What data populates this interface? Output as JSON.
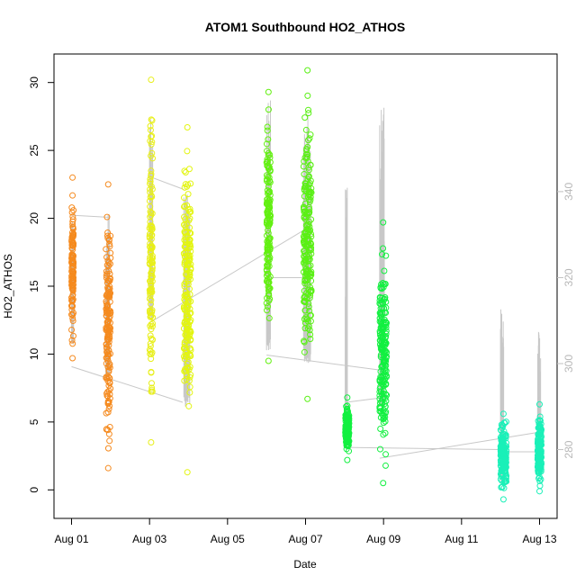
{
  "chart_data": {
    "type": "scatter",
    "title": "ATOM1 Southbound HO2_ATHOS",
    "xlabel": "Date",
    "ylabel": "HO2_ATHOS",
    "x_unit": "days since Aug 01",
    "xlim": [
      -0.45,
      12.45
    ],
    "ylim": [
      -2.1,
      32.1
    ],
    "y2lim": [
      264,
      372
    ],
    "x_ticks": [
      0,
      2,
      4,
      6,
      8,
      10,
      12
    ],
    "x_tick_labels": [
      "Aug 01",
      "Aug 03",
      "Aug 05",
      "Aug 07",
      "Aug 09",
      "Aug 11",
      "Aug 13"
    ],
    "y_ticks": [
      0,
      5,
      10,
      15,
      20,
      25,
      30
    ],
    "y2_ticks": [
      280,
      300,
      320,
      340
    ],
    "grid": false,
    "series": [
      {
        "name": "HO2_ATHOS",
        "marker": "open-circle",
        "colors_by_time": [
          "#ff8c00",
          "#f0ff00",
          "#60ff00",
          "#00ff40",
          "#00ffc0"
        ],
        "clusters": [
          {
            "x": 0.0,
            "width": 0.05,
            "y_min": 9.7,
            "y_max": 23.0,
            "color": "#f58a1e"
          },
          {
            "x": 0.88,
            "width": 0.12,
            "y_min": 1.6,
            "y_max": 22.5,
            "color": "#f58a1e"
          },
          {
            "x": 2.0,
            "width": 0.08,
            "y_min": 3.5,
            "y_max": 30.2,
            "color": "#e8ef1a"
          },
          {
            "x": 2.88,
            "width": 0.18,
            "y_min": 1.3,
            "y_max": 26.7,
            "color": "#e3f510"
          },
          {
            "x": 5.0,
            "width": 0.1,
            "y_min": 9.5,
            "y_max": 29.3,
            "color": "#62f010"
          },
          {
            "x": 5.95,
            "width": 0.2,
            "y_min": 6.7,
            "y_max": 30.9,
            "color": "#5af015"
          },
          {
            "x": 7.02,
            "width": 0.1,
            "y_min": 2.2,
            "y_max": 6.8,
            "color": "#12f040"
          },
          {
            "x": 7.9,
            "width": 0.18,
            "y_min": 0.5,
            "y_max": 19.7,
            "color": "#12f040"
          },
          {
            "x": 11.0,
            "width": 0.15,
            "y_min": -0.7,
            "y_max": 5.6,
            "color": "#1af0b8"
          },
          {
            "x": 11.95,
            "width": 0.1,
            "y_min": -0.1,
            "y_max": 6.3,
            "color": "#1af0b8"
          }
        ]
      },
      {
        "name": "right-axis-trace",
        "axis": "right",
        "color": "#c8c8c8",
        "segments": [
          {
            "x": 0.0,
            "width": 0.05,
            "y_min": 304,
            "y_max": 335
          },
          {
            "x": 0.88,
            "width": 0.1,
            "y_min": 296,
            "y_max": 335
          },
          {
            "x": 2.0,
            "width": 0.08,
            "y_min": 310,
            "y_max": 357
          },
          {
            "x": 2.88,
            "width": 0.15,
            "y_min": 290,
            "y_max": 342
          },
          {
            "x": 5.0,
            "width": 0.1,
            "y_min": 303,
            "y_max": 362
          },
          {
            "x": 5.95,
            "width": 0.18,
            "y_min": 300,
            "y_max": 360
          },
          {
            "x": 7.02,
            "width": 0.05,
            "y_min": 280,
            "y_max": 342
          },
          {
            "x": 7.9,
            "width": 0.12,
            "y_min": 290,
            "y_max": 360
          },
          {
            "x": 11.0,
            "width": 0.08,
            "y_min": 272,
            "y_max": 313
          },
          {
            "x": 11.95,
            "width": 0.08,
            "y_min": 274,
            "y_max": 310
          }
        ],
        "links": [
          [
            [
              0.0,
              334.5
            ],
            [
              0.98,
              334.0
            ]
          ],
          [
            [
              0.0,
              299.3
            ],
            [
              2.85,
              291.0
            ]
          ],
          [
            [
              2.0,
              343.5
            ],
            [
              2.88,
              340.5
            ]
          ],
          [
            [
              2.0,
              309.5
            ],
            [
              5.95,
              331.0
            ]
          ],
          [
            [
              5.0,
              320.0
            ],
            [
              5.95,
              320.0
            ]
          ],
          [
            [
              5.0,
              302.0
            ],
            [
              7.9,
              298.5
            ]
          ],
          [
            [
              7.04,
              291.0
            ],
            [
              7.9,
              292.0
            ]
          ],
          [
            [
              7.04,
              280.5
            ],
            [
              11.0,
              280.0
            ]
          ],
          [
            [
              11.0,
              279.5
            ],
            [
              11.95,
              279.5
            ]
          ],
          [
            [
              7.9,
              278.0
            ],
            [
              11.95,
              284.0
            ]
          ]
        ]
      }
    ]
  }
}
